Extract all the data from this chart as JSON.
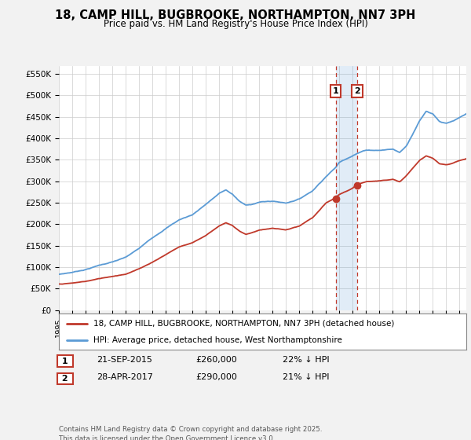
{
  "title": "18, CAMP HILL, BUGBROOKE, NORTHAMPTON, NN7 3PH",
  "subtitle": "Price paid vs. HM Land Registry's House Price Index (HPI)",
  "yticks": [
    0,
    50000,
    100000,
    150000,
    200000,
    250000,
    300000,
    350000,
    400000,
    450000,
    500000,
    550000
  ],
  "ytick_labels": [
    "£0",
    "£50K",
    "£100K",
    "£150K",
    "£200K",
    "£250K",
    "£300K",
    "£350K",
    "£400K",
    "£450K",
    "£500K",
    "£550K"
  ],
  "hpi_color": "#5b9bd5",
  "price_color": "#c0392b",
  "sale1_date": 2015.72,
  "sale1_price": 260000,
  "sale2_date": 2017.33,
  "sale2_price": 290000,
  "legend_property": "18, CAMP HILL, BUGBROOKE, NORTHAMPTON, NN7 3PH (detached house)",
  "legend_hpi": "HPI: Average price, detached house, West Northamptonshire",
  "copyright": "Contains HM Land Registry data © Crown copyright and database right 2025.\nThis data is licensed under the Open Government Licence v3.0.",
  "background_color": "#f2f2f2",
  "plot_bg_color": "#ffffff"
}
